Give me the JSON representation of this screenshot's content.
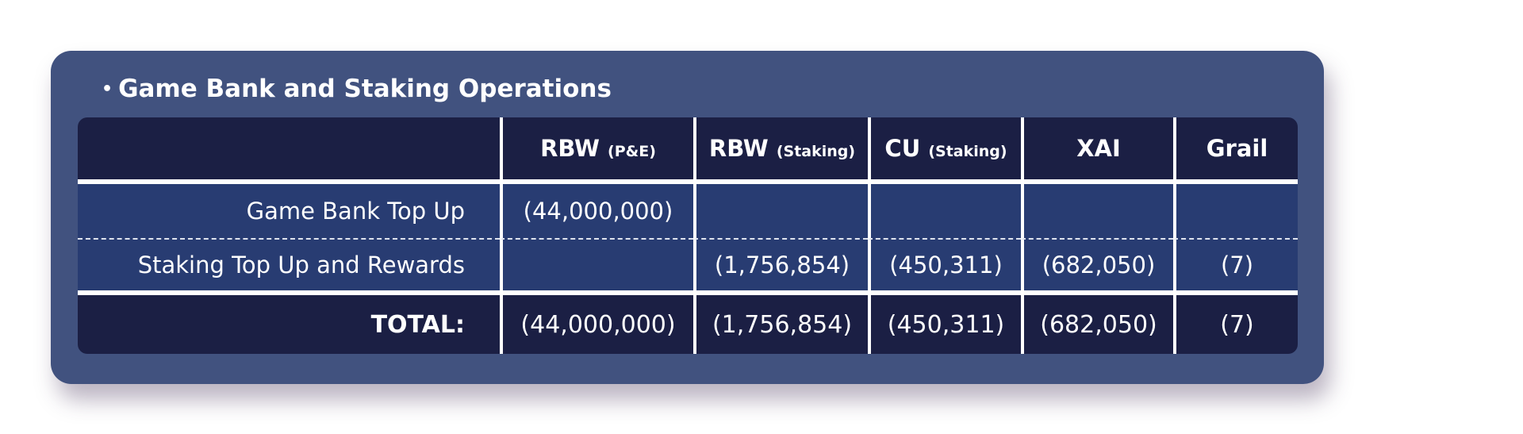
{
  "title": "Game Bank and Staking Operations",
  "colors": {
    "card_background": "#41527f",
    "header_background": "#1b1f44",
    "row_background": "#283c72",
    "text": "#ffffff"
  },
  "columns": [
    {
      "main": "RBW",
      "sub": "(P&E)"
    },
    {
      "main": "RBW",
      "sub": "(Staking)"
    },
    {
      "main": "CU",
      "sub": "(Staking)"
    },
    {
      "main": "XAI",
      "sub": ""
    },
    {
      "main": "Grail",
      "sub": ""
    }
  ],
  "rows": [
    {
      "label": "Game Bank Top Up",
      "values": [
        "(44,000,000)",
        "",
        "",
        "",
        ""
      ]
    },
    {
      "label": "Staking Top Up and Rewards",
      "values": [
        "",
        "(1,756,854)",
        "(450,311)",
        "(682,050)",
        "(7)"
      ]
    }
  ],
  "total": {
    "label": "TOTAL:",
    "values": [
      "(44,000,000)",
      "(1,756,854)",
      "(450,311)",
      "(682,050)",
      "(7)"
    ]
  }
}
